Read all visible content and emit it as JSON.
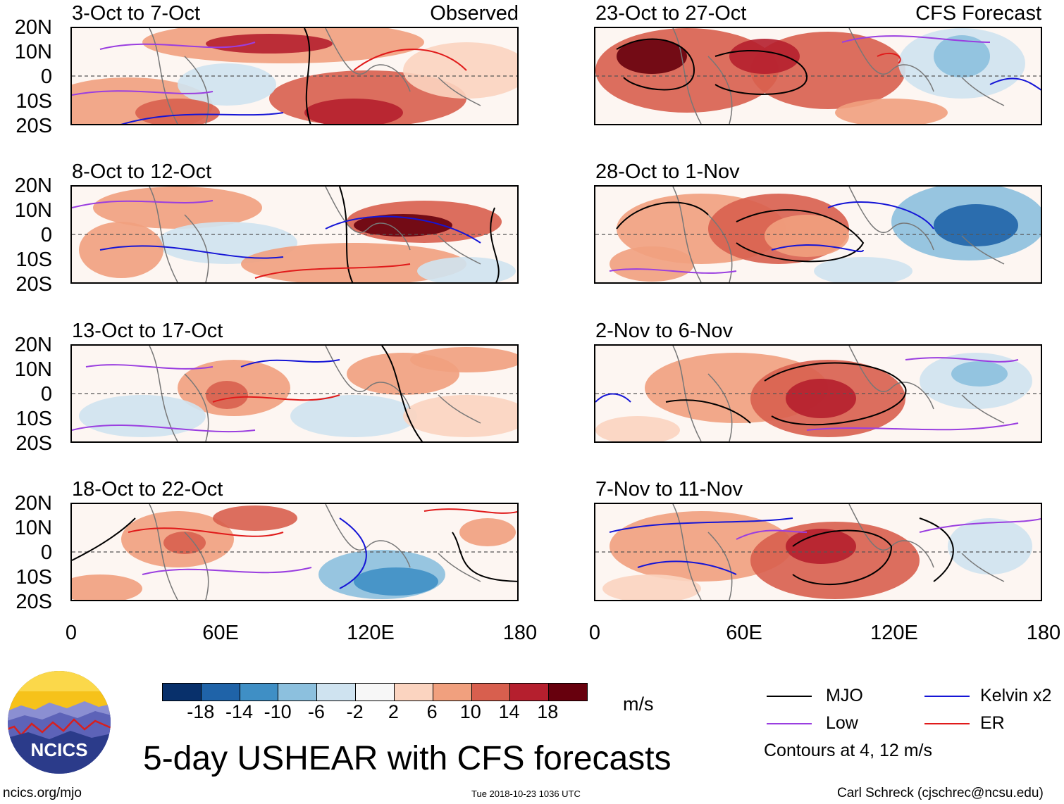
{
  "title": "5-day USHEAR with CFS forecasts",
  "observed_label": "Observed",
  "forecast_label": "CFS Forecast",
  "lat_labels": [
    "20N",
    "10N",
    "0",
    "10S",
    "20S"
  ],
  "lon_labels": [
    "0",
    "60E",
    "120E",
    "180"
  ],
  "panels": {
    "left": [
      "3-Oct to 7-Oct",
      "8-Oct to 12-Oct",
      "13-Oct to 17-Oct",
      "18-Oct to 22-Oct"
    ],
    "right": [
      "23-Oct to 27-Oct",
      "28-Oct to 1-Nov",
      "2-Nov to 6-Nov",
      "7-Nov to 11-Nov"
    ]
  },
  "colorbar": {
    "labels": [
      "-18",
      "-14",
      "-10",
      "-6",
      "-2",
      "2",
      "6",
      "10",
      "14",
      "18"
    ],
    "colors": [
      "#08306b",
      "#1f63a8",
      "#3f8fc5",
      "#8cc0de",
      "#cfe3f0",
      "#f7f7f7",
      "#fbd4c0",
      "#f1a07e",
      "#d85f4e",
      "#b51f2e",
      "#67000d"
    ],
    "units": "m/s"
  },
  "legend": {
    "items": [
      {
        "label": "MJO",
        "color": "#000000"
      },
      {
        "label": "Kelvin x2",
        "color": "#1515d6"
      },
      {
        "label": "Low",
        "color": "#9a3ee0"
      },
      {
        "label": "ER",
        "color": "#e01a1a"
      }
    ],
    "note": "Contours at 4, 12 m/s"
  },
  "logo_text": "NCICS",
  "footer": {
    "left": "ncics.org/mjo",
    "center": "Tue 2018-10-23 1036 UTC",
    "right": "Carl Schreck (cjschrec@ncsu.edu)"
  }
}
